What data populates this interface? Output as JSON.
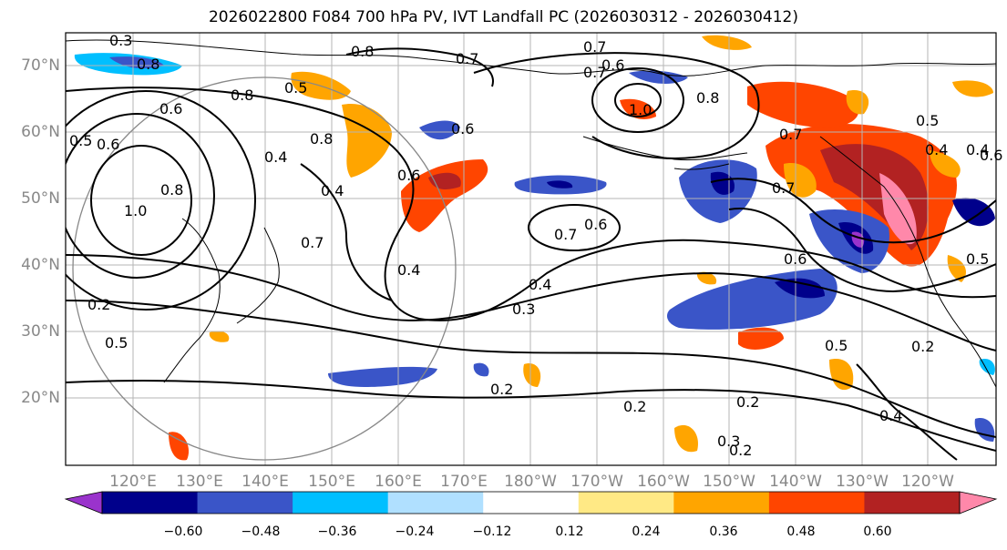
{
  "title": "2026022800 F084 700 hPa PV, IVT Landfall PC (2026030312 - 2026030412)",
  "lat_labels": [
    "70°N",
    "60°N",
    "50°N",
    "40°N",
    "30°N",
    "20°N"
  ],
  "lon_labels": [
    "120°E",
    "130°E",
    "140°E",
    "150°E",
    "160°E",
    "170°E",
    "180°W",
    "170°W",
    "160°W",
    "150°W",
    "140°W",
    "130°W",
    "120°W"
  ],
  "colorbar": {
    "ticks": [
      "−0.60",
      "−0.48",
      "−0.36",
      "−0.24",
      "−0.12",
      "0.12",
      "0.24",
      "0.36",
      "0.48",
      "0.60"
    ],
    "colors": [
      "#9a33cc",
      "#00008b",
      "#3a55c8",
      "#00bfff",
      "#b0e0ff",
      "#ffffff",
      "#ffe985",
      "#ffa500",
      "#ff4500",
      "#b22222",
      "#ff88aa"
    ]
  },
  "contour_labels": [
    "0.3",
    "0.8",
    "0.8",
    "0.8",
    "0.5",
    "0.6",
    "0.8",
    "0.4",
    "0.6",
    "0.5",
    "1.0",
    "0.4",
    "0.6",
    "0.6",
    "0.7",
    "0.7",
    "0.4",
    "0.2",
    "0.5",
    "0.7",
    "0.6",
    "1.0",
    "0.7",
    "0.8",
    "0.7",
    "0.7",
    "0.6",
    "0.4",
    "0.3",
    "0.2",
    "0.2",
    "0.2",
    "0.3",
    "0.2",
    "0.5",
    "0.2",
    "0.4",
    "0.4",
    "0.5",
    "0.5",
    "0.4",
    "0.6",
    "0.8",
    "0.7",
    "0.6"
  ]
}
